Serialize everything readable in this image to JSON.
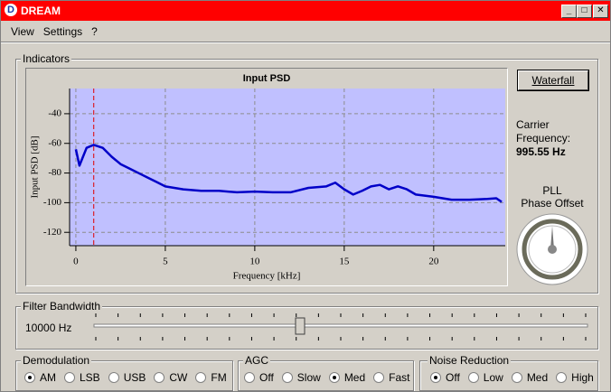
{
  "window": {
    "title": "DREAM",
    "icon": "D"
  },
  "menu": [
    "View",
    "Settings",
    "?"
  ],
  "indicators": {
    "label": "Indicators",
    "waterfall_button": "Waterfall",
    "carrier_lines": [
      "Carrier",
      "Frequency:"
    ],
    "carrier_value": "995.55 Hz",
    "pll_lines": [
      "PLL",
      "Phase Offset"
    ]
  },
  "chart_data": {
    "type": "line",
    "title": "Input PSD",
    "x_label": "Frequency [kHz]",
    "y_label": "Input PSD [dB]",
    "xlim": [
      -0.35,
      24
    ],
    "ylim": [
      -129,
      -23
    ],
    "xticks": [
      0,
      5,
      10,
      15,
      20
    ],
    "yticks": [
      -40,
      -60,
      -80,
      -100,
      -120
    ],
    "grid": true,
    "background": "#c0c0ff",
    "marker_x": 1,
    "marker_color": "#e00000",
    "x": [
      0,
      0.2,
      0.4,
      0.6,
      1,
      1.5,
      2,
      2.5,
      3,
      3.5,
      4,
      4.5,
      5,
      6,
      7,
      8,
      9,
      10,
      11,
      12,
      13,
      14,
      14.5,
      15,
      15.5,
      16,
      16.5,
      17,
      17.5,
      18,
      18.5,
      19,
      20,
      21,
      22,
      23,
      23.5,
      23.8
    ],
    "series": [
      {
        "color": "#0000c8",
        "values": [
          -64,
          -75,
          -69,
          -63,
          -61,
          -63,
          -69,
          -74,
          -77,
          -80,
          -83,
          -86,
          -89,
          -91,
          -92,
          -92,
          -93,
          -92.5,
          -93,
          -93,
          -90,
          -89,
          -86.5,
          -91,
          -94.5,
          -92,
          -89,
          -88,
          -91,
          -89,
          -91,
          -94.5,
          -96,
          -98,
          -98,
          -97.5,
          -97,
          -99.5
        ]
      }
    ]
  },
  "filter": {
    "label": "Filter Bandwidth",
    "value": "10000 Hz"
  },
  "demodulation": {
    "label": "Demodulation",
    "options": [
      {
        "label": "AM",
        "checked": true
      },
      {
        "label": "LSB",
        "checked": false
      },
      {
        "label": "USB",
        "checked": false
      },
      {
        "label": "CW",
        "checked": false
      },
      {
        "label": "FM",
        "checked": false
      }
    ]
  },
  "agc": {
    "label": "AGC",
    "options": [
      {
        "label": "Off",
        "checked": false
      },
      {
        "label": "Slow",
        "checked": false
      },
      {
        "label": "Med",
        "checked": true
      },
      {
        "label": "Fast",
        "checked": false
      }
    ]
  },
  "noise_reduction": {
    "label": "Noise Reduction",
    "options": [
      {
        "label": "Off",
        "checked": true
      },
      {
        "label": "Low",
        "checked": false
      },
      {
        "label": "Med",
        "checked": false
      },
      {
        "label": "High",
        "checked": false
      }
    ]
  }
}
